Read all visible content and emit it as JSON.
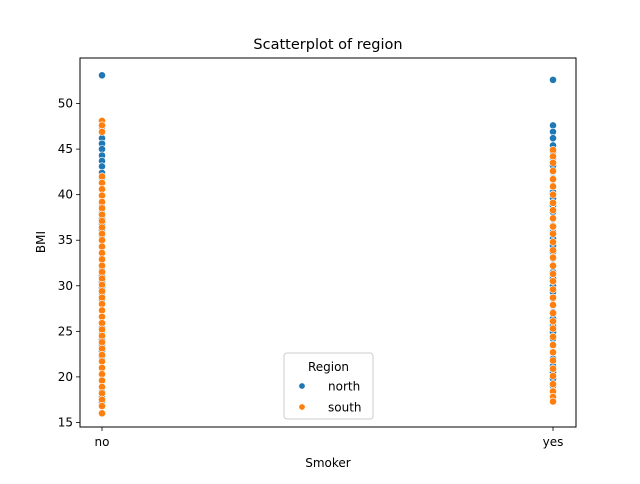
{
  "chart_data": {
    "type": "scatter",
    "title": "Scatterplot of region",
    "xlabel": "Smoker",
    "ylabel": "BMI",
    "categories": [
      "no",
      "yes"
    ],
    "ylim": [
      14.5,
      55.0
    ],
    "yticks": [
      15,
      20,
      25,
      30,
      35,
      40,
      45,
      50
    ],
    "grid": false,
    "legend": {
      "title": "Region",
      "placement": "bottom-center"
    },
    "series": [
      {
        "name": "north",
        "color": "#1f77b4",
        "points": [
          {
            "x": "no",
            "y": 53.1
          },
          {
            "x": "no",
            "y": 47.4
          },
          {
            "x": "no",
            "y": 46.8
          },
          {
            "x": "no",
            "y": 46.2
          },
          {
            "x": "no",
            "y": 45.6
          },
          {
            "x": "no",
            "y": 45.0
          },
          {
            "x": "no",
            "y": 44.3
          },
          {
            "x": "no",
            "y": 43.7
          },
          {
            "x": "no",
            "y": 43.1
          },
          {
            "x": "no",
            "y": 42.4
          },
          {
            "x": "no",
            "y": 41.8
          },
          {
            "x": "no",
            "y": 41.2
          },
          {
            "x": "no",
            "y": 40.5
          },
          {
            "x": "no",
            "y": 39.9
          },
          {
            "x": "no",
            "y": 39.3
          },
          {
            "x": "no",
            "y": 38.7
          },
          {
            "x": "no",
            "y": 38.0
          },
          {
            "x": "no",
            "y": 37.4
          },
          {
            "x": "no",
            "y": 36.8
          },
          {
            "x": "no",
            "y": 36.1
          },
          {
            "x": "no",
            "y": 35.5
          },
          {
            "x": "no",
            "y": 34.9
          },
          {
            "x": "no",
            "y": 34.2
          },
          {
            "x": "no",
            "y": 33.6
          },
          {
            "x": "no",
            "y": 33.0
          },
          {
            "x": "no",
            "y": 32.3
          },
          {
            "x": "no",
            "y": 31.7
          },
          {
            "x": "no",
            "y": 31.1
          },
          {
            "x": "no",
            "y": 30.4
          },
          {
            "x": "no",
            "y": 29.8
          },
          {
            "x": "no",
            "y": 29.2
          },
          {
            "x": "no",
            "y": 28.5
          },
          {
            "x": "no",
            "y": 27.9
          },
          {
            "x": "no",
            "y": 27.3
          },
          {
            "x": "no",
            "y": 26.6
          },
          {
            "x": "no",
            "y": 26.0
          },
          {
            "x": "no",
            "y": 25.4
          },
          {
            "x": "no",
            "y": 24.7
          },
          {
            "x": "no",
            "y": 24.1
          },
          {
            "x": "no",
            "y": 23.5
          },
          {
            "x": "no",
            "y": 22.8
          },
          {
            "x": "no",
            "y": 22.2
          },
          {
            "x": "no",
            "y": 21.6
          },
          {
            "x": "no",
            "y": 20.9
          },
          {
            "x": "no",
            "y": 20.3
          },
          {
            "x": "no",
            "y": 19.7
          },
          {
            "x": "no",
            "y": 19.0
          },
          {
            "x": "no",
            "y": 18.4
          },
          {
            "x": "no",
            "y": 17.8
          },
          {
            "x": "no",
            "y": 17.2
          },
          {
            "x": "yes",
            "y": 52.6
          },
          {
            "x": "yes",
            "y": 47.6
          },
          {
            "x": "yes",
            "y": 46.9
          },
          {
            "x": "yes",
            "y": 46.2
          },
          {
            "x": "yes",
            "y": 45.4
          },
          {
            "x": "yes",
            "y": 44.7
          },
          {
            "x": "yes",
            "y": 44.0
          },
          {
            "x": "yes",
            "y": 43.2
          },
          {
            "x": "yes",
            "y": 42.5
          },
          {
            "x": "yes",
            "y": 41.8
          },
          {
            "x": "yes",
            "y": 41.0
          },
          {
            "x": "yes",
            "y": 40.3
          },
          {
            "x": "yes",
            "y": 39.6
          },
          {
            "x": "yes",
            "y": 38.8
          },
          {
            "x": "yes",
            "y": 38.1
          },
          {
            "x": "yes",
            "y": 37.4
          },
          {
            "x": "yes",
            "y": 36.6
          },
          {
            "x": "yes",
            "y": 35.9
          },
          {
            "x": "yes",
            "y": 35.2
          },
          {
            "x": "yes",
            "y": 34.4
          },
          {
            "x": "yes",
            "y": 33.7
          },
          {
            "x": "yes",
            "y": 33.0
          },
          {
            "x": "yes",
            "y": 32.2
          },
          {
            "x": "yes",
            "y": 31.5
          },
          {
            "x": "yes",
            "y": 30.8
          },
          {
            "x": "yes",
            "y": 30.0
          },
          {
            "x": "yes",
            "y": 29.3
          },
          {
            "x": "yes",
            "y": 28.6
          },
          {
            "x": "yes",
            "y": 27.8
          },
          {
            "x": "yes",
            "y": 27.1
          },
          {
            "x": "yes",
            "y": 26.4
          },
          {
            "x": "yes",
            "y": 25.6
          },
          {
            "x": "yes",
            "y": 24.9
          },
          {
            "x": "yes",
            "y": 24.2
          },
          {
            "x": "yes",
            "y": 23.4
          },
          {
            "x": "yes",
            "y": 22.7
          },
          {
            "x": "yes",
            "y": 22.0
          },
          {
            "x": "yes",
            "y": 21.2
          },
          {
            "x": "yes",
            "y": 20.5
          },
          {
            "x": "yes",
            "y": 19.8
          },
          {
            "x": "yes",
            "y": 19.0
          }
        ]
      },
      {
        "name": "south",
        "color": "#ff7f0e",
        "points": [
          {
            "x": "no",
            "y": 48.1
          },
          {
            "x": "no",
            "y": 47.6
          },
          {
            "x": "no",
            "y": 46.9
          },
          {
            "x": "no",
            "y": 42.0
          },
          {
            "x": "no",
            "y": 41.3
          },
          {
            "x": "no",
            "y": 40.6
          },
          {
            "x": "no",
            "y": 39.9
          },
          {
            "x": "no",
            "y": 39.2
          },
          {
            "x": "no",
            "y": 38.5
          },
          {
            "x": "no",
            "y": 37.8
          },
          {
            "x": "no",
            "y": 37.1
          },
          {
            "x": "no",
            "y": 36.4
          },
          {
            "x": "no",
            "y": 35.7
          },
          {
            "x": "no",
            "y": 35.0
          },
          {
            "x": "no",
            "y": 34.3
          },
          {
            "x": "no",
            "y": 33.6
          },
          {
            "x": "no",
            "y": 32.9
          },
          {
            "x": "no",
            "y": 32.2
          },
          {
            "x": "no",
            "y": 31.5
          },
          {
            "x": "no",
            "y": 30.8
          },
          {
            "x": "no",
            "y": 30.1
          },
          {
            "x": "no",
            "y": 29.4
          },
          {
            "x": "no",
            "y": 28.7
          },
          {
            "x": "no",
            "y": 28.0
          },
          {
            "x": "no",
            "y": 27.3
          },
          {
            "x": "no",
            "y": 26.6
          },
          {
            "x": "no",
            "y": 25.9
          },
          {
            "x": "no",
            "y": 25.2
          },
          {
            "x": "no",
            "y": 24.5
          },
          {
            "x": "no",
            "y": 23.8
          },
          {
            "x": "no",
            "y": 23.1
          },
          {
            "x": "no",
            "y": 22.4
          },
          {
            "x": "no",
            "y": 21.7
          },
          {
            "x": "no",
            "y": 21.0
          },
          {
            "x": "no",
            "y": 20.3
          },
          {
            "x": "no",
            "y": 19.6
          },
          {
            "x": "no",
            "y": 18.9
          },
          {
            "x": "no",
            "y": 18.2
          },
          {
            "x": "no",
            "y": 17.5
          },
          {
            "x": "no",
            "y": 16.8
          },
          {
            "x": "no",
            "y": 16.0
          },
          {
            "x": "yes",
            "y": 44.9
          },
          {
            "x": "yes",
            "y": 44.2
          },
          {
            "x": "yes",
            "y": 43.5
          },
          {
            "x": "yes",
            "y": 42.6
          },
          {
            "x": "yes",
            "y": 41.7
          },
          {
            "x": "yes",
            "y": 40.9
          },
          {
            "x": "yes",
            "y": 40.0
          },
          {
            "x": "yes",
            "y": 39.1
          },
          {
            "x": "yes",
            "y": 38.3
          },
          {
            "x": "yes",
            "y": 37.4
          },
          {
            "x": "yes",
            "y": 36.5
          },
          {
            "x": "yes",
            "y": 35.7
          },
          {
            "x": "yes",
            "y": 34.8
          },
          {
            "x": "yes",
            "y": 33.9
          },
          {
            "x": "yes",
            "y": 33.1
          },
          {
            "x": "yes",
            "y": 32.2
          },
          {
            "x": "yes",
            "y": 31.3
          },
          {
            "x": "yes",
            "y": 30.5
          },
          {
            "x": "yes",
            "y": 29.6
          },
          {
            "x": "yes",
            "y": 28.7
          },
          {
            "x": "yes",
            "y": 27.9
          },
          {
            "x": "yes",
            "y": 27.0
          },
          {
            "x": "yes",
            "y": 26.1
          },
          {
            "x": "yes",
            "y": 25.3
          },
          {
            "x": "yes",
            "y": 24.4
          },
          {
            "x": "yes",
            "y": 23.5
          },
          {
            "x": "yes",
            "y": 22.7
          },
          {
            "x": "yes",
            "y": 21.8
          },
          {
            "x": "yes",
            "y": 20.9
          },
          {
            "x": "yes",
            "y": 20.1
          },
          {
            "x": "yes",
            "y": 19.2
          },
          {
            "x": "yes",
            "y": 18.4
          },
          {
            "x": "yes",
            "y": 17.8
          },
          {
            "x": "yes",
            "y": 17.3
          }
        ]
      }
    ]
  }
}
